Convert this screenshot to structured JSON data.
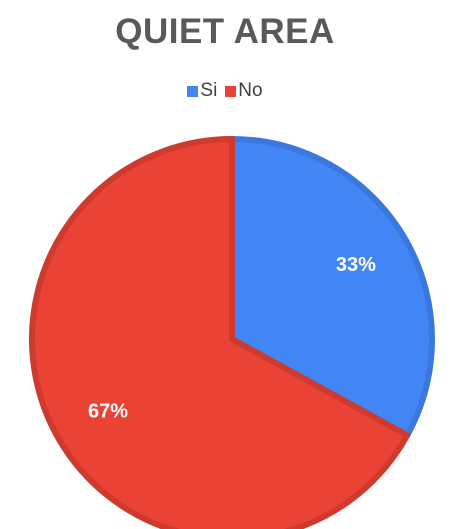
{
  "chart_data": {
    "type": "pie",
    "title": "QUIET AREA",
    "legend_position": "top",
    "categories": [
      "Si",
      "No"
    ],
    "values": [
      33,
      67
    ],
    "labels": [
      "33%",
      "67%"
    ],
    "colors": [
      "#4285f4",
      "#ea4335"
    ],
    "edge_colors": [
      "#3b78de",
      "#cf3a2e"
    ]
  }
}
